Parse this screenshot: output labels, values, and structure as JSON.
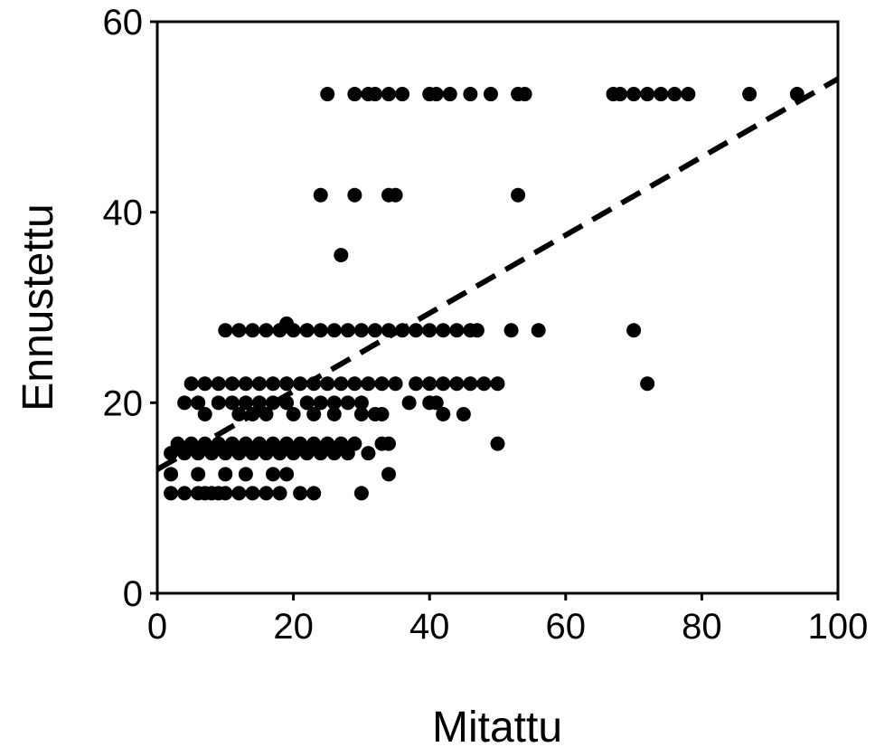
{
  "chart_data": {
    "type": "scatter",
    "title": "",
    "xlabel": "Mitattu",
    "ylabel": "Ennustettu",
    "xlim": [
      0,
      100
    ],
    "ylim": [
      0,
      60
    ],
    "xticks": [
      0,
      20,
      40,
      60,
      80,
      100
    ],
    "yticks": [
      0,
      20,
      40,
      60
    ],
    "grid": false,
    "legend": "none",
    "point_color": "#000000",
    "series": [
      {
        "kind": "points",
        "points": [
          [
            2,
            10.5
          ],
          [
            4,
            10.5
          ],
          [
            6,
            10.5
          ],
          [
            7,
            10.5
          ],
          [
            8,
            10.5
          ],
          [
            9,
            10.5
          ],
          [
            10,
            10.5
          ],
          [
            12,
            10.5
          ],
          [
            14,
            10.5
          ],
          [
            16,
            10.5
          ],
          [
            18,
            10.5
          ],
          [
            21,
            10.5
          ],
          [
            23,
            10.5
          ],
          [
            30,
            10.5
          ],
          [
            2,
            12.5
          ],
          [
            6,
            12.5
          ],
          [
            10,
            12.5
          ],
          [
            13,
            12.5
          ],
          [
            17,
            12.5
          ],
          [
            19,
            12.5
          ],
          [
            34,
            12.5
          ],
          [
            2,
            14.7
          ],
          [
            4,
            14.7
          ],
          [
            6,
            14.7
          ],
          [
            8,
            14.7
          ],
          [
            10,
            14.7
          ],
          [
            12,
            14.7
          ],
          [
            14,
            14.7
          ],
          [
            16,
            14.7
          ],
          [
            18,
            14.7
          ],
          [
            20,
            14.7
          ],
          [
            22,
            14.7
          ],
          [
            24,
            14.7
          ],
          [
            26,
            14.7
          ],
          [
            28,
            14.7
          ],
          [
            31,
            14.7
          ],
          [
            3,
            15.7
          ],
          [
            5,
            15.7
          ],
          [
            7,
            15.7
          ],
          [
            9,
            15.7
          ],
          [
            11,
            15.7
          ],
          [
            13,
            15.7
          ],
          [
            15,
            15.7
          ],
          [
            17,
            15.7
          ],
          [
            19,
            15.7
          ],
          [
            21,
            15.7
          ],
          [
            23,
            15.7
          ],
          [
            25,
            15.7
          ],
          [
            27,
            15.7
          ],
          [
            29,
            15.7
          ],
          [
            33,
            15.7
          ],
          [
            34,
            15.7
          ],
          [
            50,
            15.7
          ],
          [
            4,
            20
          ],
          [
            6,
            20
          ],
          [
            9,
            20
          ],
          [
            11,
            20
          ],
          [
            13,
            20
          ],
          [
            15,
            20
          ],
          [
            17,
            20
          ],
          [
            19,
            20
          ],
          [
            22,
            20
          ],
          [
            24,
            20
          ],
          [
            26,
            20
          ],
          [
            28,
            20
          ],
          [
            30,
            20
          ],
          [
            37,
            20
          ],
          [
            40,
            20
          ],
          [
            41,
            20
          ],
          [
            7,
            18.8
          ],
          [
            12,
            18.8
          ],
          [
            14,
            18.8
          ],
          [
            16,
            18.8
          ],
          [
            20,
            18.8
          ],
          [
            23,
            18.8
          ],
          [
            26,
            18.8
          ],
          [
            30,
            18.8
          ],
          [
            32,
            18.8
          ],
          [
            33,
            18.8
          ],
          [
            42,
            18.8
          ],
          [
            45,
            18.8
          ],
          [
            5,
            22
          ],
          [
            7,
            22
          ],
          [
            9,
            22
          ],
          [
            11,
            22
          ],
          [
            13,
            22
          ],
          [
            15,
            22
          ],
          [
            17,
            22
          ],
          [
            19,
            22
          ],
          [
            21,
            22
          ],
          [
            23,
            22
          ],
          [
            25,
            22
          ],
          [
            27,
            22
          ],
          [
            29,
            22
          ],
          [
            31,
            22
          ],
          [
            33,
            22
          ],
          [
            35,
            22
          ],
          [
            38,
            22
          ],
          [
            40,
            22
          ],
          [
            42,
            22
          ],
          [
            44,
            22
          ],
          [
            46,
            22
          ],
          [
            48,
            22
          ],
          [
            50,
            22
          ],
          [
            10,
            27.6
          ],
          [
            12,
            27.6
          ],
          [
            14,
            27.6
          ],
          [
            16,
            27.6
          ],
          [
            18,
            27.6
          ],
          [
            20,
            27.6
          ],
          [
            22,
            27.6
          ],
          [
            24,
            27.6
          ],
          [
            26,
            27.6
          ],
          [
            28,
            27.6
          ],
          [
            30,
            27.6
          ],
          [
            32,
            27.6
          ],
          [
            34,
            27.6
          ],
          [
            36,
            27.6
          ],
          [
            38,
            27.6
          ],
          [
            40,
            27.6
          ],
          [
            42,
            27.6
          ],
          [
            44,
            27.6
          ],
          [
            46,
            27.6
          ],
          [
            47,
            27.6
          ],
          [
            52,
            27.6
          ],
          [
            56,
            27.6
          ],
          [
            70,
            27.6
          ],
          [
            19,
            28.3
          ],
          [
            72,
            22
          ],
          [
            27,
            35.5
          ],
          [
            24,
            41.8
          ],
          [
            29,
            41.8
          ],
          [
            34,
            41.8
          ],
          [
            35,
            41.8
          ],
          [
            53,
            41.8
          ],
          [
            25,
            52.4
          ],
          [
            29,
            52.4
          ],
          [
            31,
            52.4
          ],
          [
            32,
            52.4
          ],
          [
            34,
            52.4
          ],
          [
            36,
            52.4
          ],
          [
            40,
            52.4
          ],
          [
            41,
            52.4
          ],
          [
            43,
            52.4
          ],
          [
            46,
            52.4
          ],
          [
            49,
            52.4
          ],
          [
            53,
            52.4
          ],
          [
            54,
            52.4
          ],
          [
            67,
            52.4
          ],
          [
            68,
            52.4
          ],
          [
            70,
            52.4
          ],
          [
            72,
            52.4
          ],
          [
            74,
            52.4
          ],
          [
            76,
            52.4
          ],
          [
            78,
            52.4
          ],
          [
            87,
            52.4
          ],
          [
            94,
            52.4
          ]
        ]
      },
      {
        "kind": "trendline",
        "line_style": "dashed",
        "x": [
          0,
          100
        ],
        "y": [
          13,
          54
        ]
      }
    ]
  }
}
